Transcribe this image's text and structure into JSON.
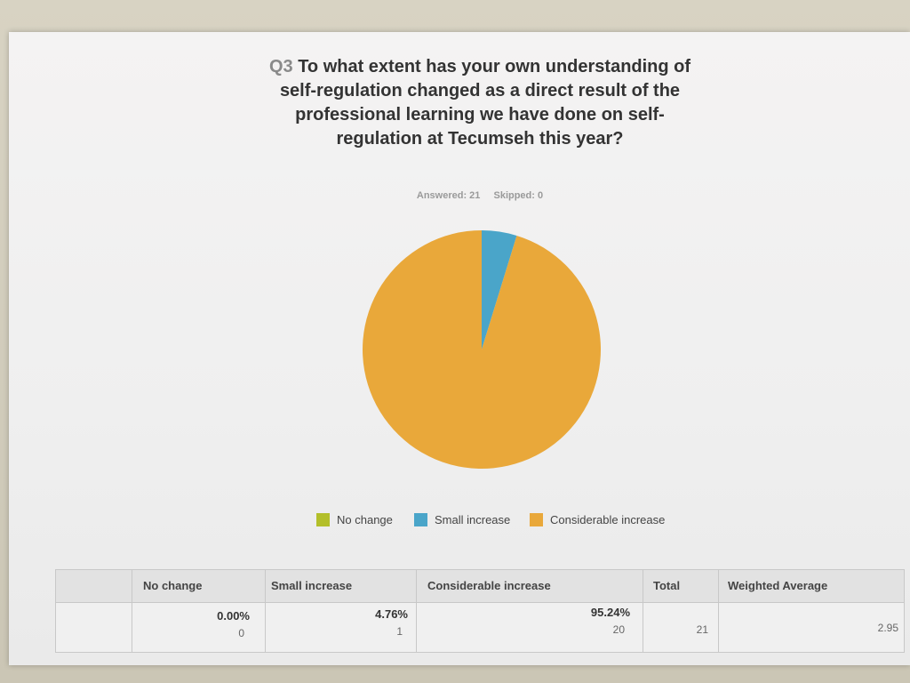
{
  "question": {
    "number": "Q3",
    "text": "To what extent has your own understanding of self-regulation changed as a direct result of the professional learning we have done on self-regulation at Tecumseh this year?"
  },
  "meta": {
    "answered": "Answered: 21",
    "skipped": "Skipped: 0"
  },
  "colors": {
    "no_change": "#b3bf2a",
    "small_increase": "#4aa5c9",
    "considerable_increase": "#e9a83a"
  },
  "chart_data": {
    "type": "pie",
    "categories": [
      "No change",
      "Small increase",
      "Considerable increase"
    ],
    "values": [
      0.0,
      4.76,
      95.24
    ],
    "counts": [
      0,
      1,
      20
    ],
    "legend_position": "bottom"
  },
  "table": {
    "headers": [
      "No change",
      "Small increase",
      "Considerable increase",
      "Total",
      "Weighted Average"
    ],
    "percentages": [
      "0.00%",
      "4.76%",
      "95.24%"
    ],
    "counts": [
      "0",
      "1",
      "20"
    ],
    "total": "21",
    "weighted_average": "2.95"
  }
}
